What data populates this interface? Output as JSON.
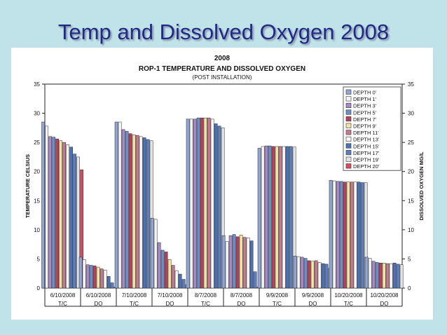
{
  "slide": {
    "title": "Temp and Dissolved Oxygen 2008"
  },
  "colors": {
    "slide_bg": "#bfe3e8",
    "title": "#1f2a86"
  },
  "chart_data": {
    "type": "bar",
    "title": "2008",
    "subtitle": "ROP-1 TEMPERATURE AND DISSOLVED OXYGEN",
    "note": "(POST INSTALLATION)",
    "ylabel": "TEMPERATURE CELSIUS",
    "y2label": "DISSOLVED OXYGEN MG/L",
    "ylim": [
      0,
      35
    ],
    "y2lim": [
      0,
      35
    ],
    "yticks": [
      0,
      5,
      10,
      15,
      20,
      25,
      30,
      35
    ],
    "y2ticks": [
      0,
      5,
      10,
      15,
      20,
      25,
      30,
      35
    ],
    "legend_position": "top-right",
    "categories": [
      {
        "date": "6/10/2008",
        "kind": "T/C"
      },
      {
        "date": "6/10/2008",
        "kind": "DO"
      },
      {
        "date": "7/10/2008",
        "kind": "T/C"
      },
      {
        "date": "7/10/2008",
        "kind": "DO"
      },
      {
        "date": "8/7/2008",
        "kind": "T/C"
      },
      {
        "date": "8/7/2008",
        "kind": "DO"
      },
      {
        "date": "9/9/2008",
        "kind": "T/C"
      },
      {
        "date": "9/9/2008",
        "kind": "DO"
      },
      {
        "date": "10/20/2008",
        "kind": "T/C"
      },
      {
        "date": "10/20/2008",
        "kind": "DO"
      }
    ],
    "series": [
      {
        "name": "DEPTH 0'",
        "color": "#8fa6d6",
        "values": [
          28.5,
          5.3,
          28.5,
          12.0,
          29.0,
          9.0,
          24.0,
          5.5,
          18.5,
          5.3
        ]
      },
      {
        "name": "DEPTH 1'",
        "color": "#f4f4f4",
        "values": [
          27.8,
          4.9,
          28.5,
          11.8,
          29.0,
          8.0,
          24.3,
          5.4,
          18.4,
          5.1
        ]
      },
      {
        "name": "DEPTH 3'",
        "color": "#a88ac8",
        "values": [
          26.0,
          4.0,
          27.2,
          7.8,
          29.0,
          9.0,
          24.4,
          5.3,
          18.3,
          4.6
        ]
      },
      {
        "name": "DEPTH 5'",
        "color": "#6d8fc9",
        "values": [
          25.9,
          3.9,
          26.9,
          6.5,
          29.2,
          9.2,
          24.4,
          5.1,
          18.3,
          4.4
        ]
      },
      {
        "name": "DEPTH 7'",
        "color": "#b8405a",
        "values": [
          25.6,
          3.8,
          26.5,
          6.2,
          29.2,
          8.8,
          24.3,
          4.7,
          18.2,
          4.3
        ]
      },
      {
        "name": "DEPTH 9'",
        "color": "#f2e6a6",
        "values": [
          25.3,
          3.6,
          26.3,
          4.9,
          29.2,
          9.1,
          24.3,
          4.6,
          18.2,
          4.3
        ]
      },
      {
        "name": "DEPTH 11'",
        "color": "#c67a8e",
        "values": [
          25.0,
          3.3,
          26.2,
          3.9,
          29.2,
          8.7,
          24.3,
          4.7,
          18.2,
          4.2
        ]
      },
      {
        "name": "DEPTH 13'",
        "color": "#f7f7f7",
        "values": [
          24.6,
          3.1,
          26.0,
          3.0,
          29.0,
          8.6,
          24.3,
          4.4,
          18.2,
          4.2
        ]
      },
      {
        "name": "DEPTH 15'",
        "color": "#4a72b8",
        "values": [
          24.2,
          2.0,
          25.8,
          2.4,
          28.2,
          8.1,
          24.3,
          4.2,
          18.2,
          4.3
        ]
      },
      {
        "name": "DEPTH 17'",
        "color": "#5d7fc0",
        "values": [
          23.0,
          0.9,
          25.5,
          1.5,
          27.8,
          2.8,
          24.3,
          4.1,
          18.1,
          4.1
        ]
      },
      {
        "name": "DEPTH 19'",
        "color": "#e3e3e3",
        "values": [
          22.5,
          0.2,
          25.3,
          0.6,
          27.5,
          0.2,
          24.2,
          3.4,
          18.1,
          4.0
        ]
      },
      {
        "name": "DEPTH 20'",
        "color": "#d94b5b",
        "values": [
          20.3,
          null,
          null,
          null,
          null,
          null,
          null,
          null,
          null,
          null
        ]
      }
    ]
  }
}
